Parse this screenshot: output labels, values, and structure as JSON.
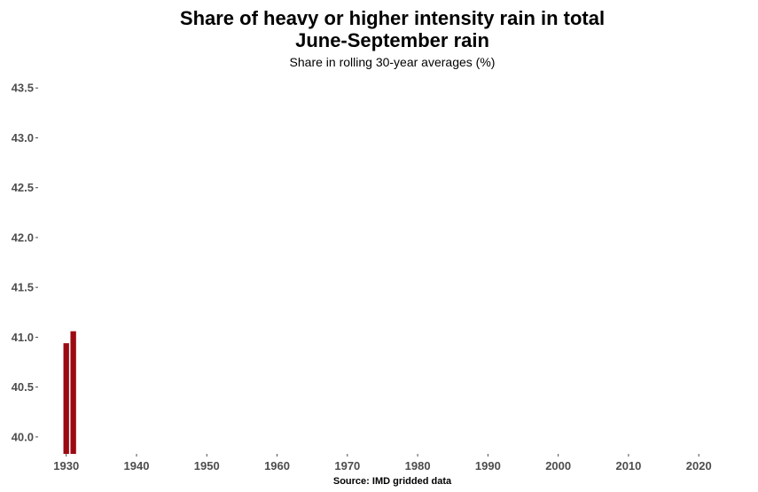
{
  "chart_data": {
    "type": "bar",
    "title_lines": [
      "Share of heavy or higher intensity rain in total",
      "June-September rain"
    ],
    "subtitle": "Share in rolling 30-year averages (%)",
    "caption": "Source: IMD gridded data",
    "xlabel": "",
    "ylabel": "",
    "bar_color": "#9b0a12",
    "tick_color": "#4d4d4d",
    "grid": false,
    "legend": "none",
    "x": [
      1930,
      1931
    ],
    "values": [
      40.94,
      41.06
    ],
    "xlim": [
      1926,
      2023
    ],
    "ylim": [
      39.83,
      43.6
    ],
    "x_ticks": [
      1930,
      1940,
      1950,
      1960,
      1970,
      1980,
      1990,
      2000,
      2010,
      2020
    ],
    "x_tick_labels": [
      "1930",
      "1940",
      "1950",
      "1960",
      "1970",
      "1980",
      "1990",
      "2000",
      "2010",
      "2020"
    ],
    "y_ticks": [
      40.0,
      40.5,
      41.0,
      41.5,
      42.0,
      42.5,
      43.0,
      43.5
    ],
    "y_tick_labels": [
      "40.0",
      "40.5",
      "41.0",
      "41.5",
      "42.0",
      "42.5",
      "43.0",
      "43.5"
    ]
  }
}
